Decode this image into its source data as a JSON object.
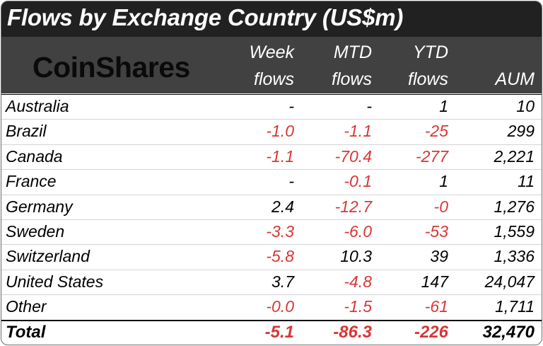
{
  "title": "Flows by Exchange Country (US$m)",
  "brand": "CoinShares",
  "chart_data": {
    "type": "table",
    "title": "Flows by Exchange Country (US$m)",
    "columns": [
      {
        "line1": "Week",
        "line2": "flows"
      },
      {
        "line1": "MTD",
        "line2": "flows"
      },
      {
        "line1": "YTD",
        "line2": "flows"
      },
      {
        "line1": "",
        "line2": "AUM"
      }
    ],
    "rows": [
      {
        "country": "Australia",
        "values": [
          "-",
          "-",
          "1",
          "10"
        ]
      },
      {
        "country": "Brazil",
        "values": [
          "-1.0",
          "-1.1",
          "-25",
          "299"
        ]
      },
      {
        "country": "Canada",
        "values": [
          "-1.1",
          "-70.4",
          "-277",
          "2,221"
        ]
      },
      {
        "country": "France",
        "values": [
          "-",
          "-0.1",
          "1",
          "11"
        ]
      },
      {
        "country": "Germany",
        "values": [
          "2.4",
          "-12.7",
          "-0",
          "1,276"
        ]
      },
      {
        "country": "Sweden",
        "values": [
          "-3.3",
          "-6.0",
          "-53",
          "1,559"
        ]
      },
      {
        "country": "Switzerland",
        "values": [
          "-5.8",
          "10.3",
          "39",
          "1,336"
        ]
      },
      {
        "country": "United States",
        "values": [
          "3.7",
          "-4.8",
          "147",
          "24,047"
        ]
      },
      {
        "country": "Other",
        "values": [
          "-0.0",
          "-1.5",
          "-61",
          "1,711"
        ]
      }
    ],
    "total": {
      "label": "Total",
      "values": [
        "-5.1",
        "-86.3",
        "-226",
        "32,470"
      ]
    },
    "negative_color": "#d93636",
    "header_color": "#414141",
    "title_bar_color": "#212121"
  }
}
